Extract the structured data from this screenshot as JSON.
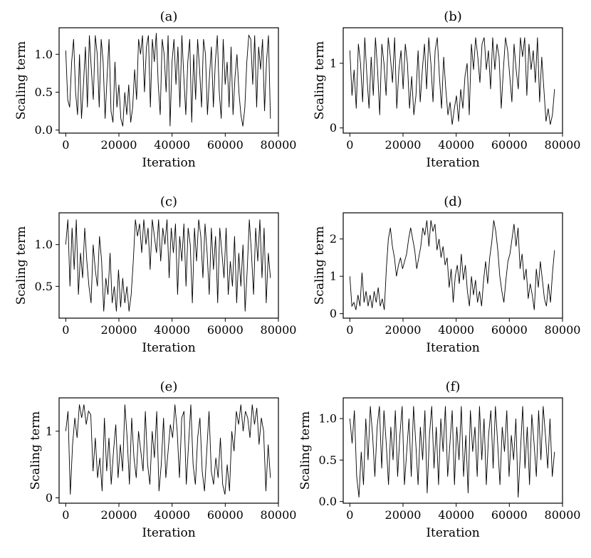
{
  "chart_data": [
    {
      "type": "line",
      "title": "(a)",
      "xlabel": "Iteration",
      "ylabel": "Scaling term",
      "xlim": [
        -2500,
        80000
      ],
      "ylim": [
        -0.04,
        1.35
      ],
      "xticks": [
        0,
        20000,
        40000,
        60000,
        80000
      ],
      "xtick_labels": [
        "0",
        "20000",
        "40000",
        "60000",
        "80000"
      ],
      "yticks": [
        0.0,
        0.5,
        1.0
      ],
      "ytick_labels": [
        "0.0",
        "0.5",
        "1.0"
      ],
      "series": [
        {
          "name": "scaling term",
          "x_start": 0,
          "x_end": 77000,
          "values": [
            1.05,
            0.4,
            0.3,
            0.9,
            1.2,
            0.5,
            0.2,
            1.0,
            0.15,
            0.6,
            1.1,
            0.3,
            1.25,
            0.8,
            0.4,
            1.25,
            1.0,
            0.3,
            1.2,
            0.9,
            0.15,
            0.7,
            1.2,
            0.25,
            0.1,
            0.9,
            0.3,
            0.6,
            0.15,
            0.05,
            0.5,
            0.2,
            0.6,
            0.1,
            0.3,
            0.8,
            0.4,
            1.2,
            1.0,
            1.25,
            0.5,
            1.1,
            1.25,
            0.3,
            1.2,
            0.9,
            1.28,
            0.6,
            0.2,
            1.2,
            1.0,
            0.5,
            1.25,
            0.05,
            0.9,
            1.2,
            0.6,
            1.1,
            0.3,
            1.25,
            0.7,
            0.2,
            0.9,
            1.2,
            0.1,
            1.0,
            0.4,
            1.2,
            0.8,
            0.3,
            1.2,
            1.0,
            0.2,
            0.7,
            1.1,
            0.3,
            0.9,
            1.25,
            0.5,
            0.15,
            1.2,
            0.6,
            0.9,
            0.3,
            1.1,
            0.2,
            0.7,
            1.0,
            0.5,
            0.2,
            0.05,
            0.3,
            0.9,
            1.25,
            1.2,
            0.6,
            1.25,
            0.3,
            1.1,
            0.8,
            1.2,
            0.25,
            0.9,
            1.25,
            0.15
          ]
        }
      ]
    },
    {
      "type": "line",
      "title": "(b)",
      "xlabel": "Iteration",
      "ylabel": "Scaling term",
      "xlim": [
        -2500,
        80000
      ],
      "ylim": [
        -0.08,
        1.55
      ],
      "xticks": [
        0,
        20000,
        40000,
        60000,
        80000
      ],
      "xtick_labels": [
        "0",
        "20000",
        "40000",
        "60000",
        "80000"
      ],
      "yticks": [
        0,
        1
      ],
      "ytick_labels": [
        "0",
        "1"
      ],
      "series": [
        {
          "name": "scaling term",
          "x_start": 0,
          "x_end": 77000,
          "values": [
            1.2,
            0.5,
            0.9,
            0.3,
            1.3,
            1.0,
            0.4,
            1.4,
            0.8,
            0.3,
            1.1,
            0.5,
            1.4,
            0.9,
            0.2,
            1.3,
            1.0,
            0.5,
            1.4,
            1.1,
            0.7,
            1.4,
            0.3,
            0.9,
            1.2,
            0.6,
            1.3,
            1.0,
            0.3,
            0.8,
            0.2,
            0.5,
            1.2,
            0.4,
            0.9,
            1.3,
            0.6,
            1.4,
            1.0,
            0.4,
            1.2,
            1.4,
            0.8,
            0.3,
            1.1,
            0.6,
            0.2,
            0.4,
            0.05,
            0.3,
            0.5,
            0.1,
            0.6,
            0.3,
            0.8,
            1.0,
            0.2,
            1.3,
            0.9,
            1.4,
            1.1,
            0.7,
            1.3,
            1.4,
            0.9,
            1.2,
            0.6,
            1.4,
            0.9,
            1.3,
            1.1,
            0.3,
            0.9,
            1.4,
            1.2,
            0.8,
            0.4,
            1.3,
            0.9,
            0.6,
            1.4,
            1.1,
            1.4,
            0.5,
            1.3,
            0.9,
            1.2,
            0.7,
            1.4,
            0.4,
            1.1,
            0.6,
            0.1,
            0.3,
            0.05,
            0.2,
            0.6
          ]
        }
      ]
    },
    {
      "type": "line",
      "title": "(c)",
      "xlabel": "Iteration",
      "ylabel": "Scaling term",
      "xlim": [
        -2500,
        80000
      ],
      "ylim": [
        0.12,
        1.38
      ],
      "xticks": [
        0,
        20000,
        40000,
        60000,
        80000
      ],
      "xtick_labels": [
        "0",
        "20000",
        "40000",
        "60000",
        "80000"
      ],
      "yticks": [
        0.5,
        1.0
      ],
      "ytick_labels": [
        "0.5",
        "1.0"
      ],
      "series": [
        {
          "name": "scaling term",
          "x_start": 0,
          "x_end": 77000,
          "values": [
            1.0,
            1.3,
            0.5,
            1.2,
            0.7,
            1.3,
            0.4,
            0.9,
            0.6,
            1.2,
            0.8,
            0.5,
            0.3,
            1.0,
            0.7,
            0.5,
            1.1,
            0.8,
            0.2,
            0.6,
            0.4,
            0.9,
            0.3,
            0.5,
            0.2,
            0.7,
            0.25,
            0.6,
            0.3,
            0.5,
            0.2,
            0.4,
            0.8,
            1.3,
            1.1,
            1.25,
            0.9,
            1.3,
            1.0,
            1.2,
            0.7,
            1.3,
            1.1,
            0.9,
            1.3,
            0.8,
            1.2,
            1.0,
            1.3,
            0.6,
            1.2,
            0.9,
            1.25,
            0.4,
            1.1,
            0.8,
            1.25,
            0.5,
            1.2,
            1.0,
            0.3,
            1.2,
            0.8,
            1.3,
            1.1,
            0.6,
            1.25,
            0.9,
            0.4,
            1.2,
            0.7,
            1.1,
            0.3,
            1.2,
            0.9,
            0.6,
            1.2,
            0.4,
            0.8,
            0.5,
            1.1,
            0.3,
            0.9,
            0.5,
            1.0,
            0.2,
            0.7,
            1.3,
            0.9,
            0.4,
            1.2,
            0.8,
            1.3,
            0.6,
            1.2,
            0.3,
            0.9,
            0.6
          ]
        }
      ]
    },
    {
      "type": "line",
      "title": "(d)",
      "xlabel": "Iteration",
      "ylabel": "Scaling term",
      "xlim": [
        -2500,
        80000
      ],
      "ylim": [
        -0.12,
        2.7
      ],
      "xticks": [
        0,
        20000,
        40000,
        60000,
        80000
      ],
      "xtick_labels": [
        "0",
        "20000",
        "40000",
        "60000",
        "80000"
      ],
      "yticks": [
        0,
        1,
        2
      ],
      "ytick_labels": [
        "0",
        "1",
        "2"
      ],
      "series": [
        {
          "name": "scaling term",
          "x_start": 0,
          "x_end": 77000,
          "values": [
            1.0,
            0.2,
            0.3,
            0.1,
            0.5,
            0.2,
            1.1,
            0.3,
            0.6,
            0.2,
            0.5,
            0.15,
            0.6,
            0.3,
            0.7,
            0.2,
            0.4,
            0.1,
            1.2,
            2.0,
            2.3,
            1.8,
            1.5,
            1.0,
            1.3,
            1.5,
            1.2,
            1.4,
            1.6,
            2.0,
            2.3,
            2.0,
            1.7,
            1.2,
            1.5,
            1.8,
            2.3,
            2.1,
            2.5,
            1.8,
            2.5,
            2.2,
            2.4,
            1.7,
            2.0,
            1.5,
            1.8,
            1.3,
            1.5,
            0.7,
            1.2,
            0.3,
            1.0,
            1.3,
            0.8,
            1.6,
            0.9,
            1.3,
            0.6,
            0.2,
            1.0,
            0.5,
            0.9,
            0.3,
            0.6,
            0.2,
            0.9,
            1.4,
            0.8,
            1.5,
            1.9,
            2.5,
            2.2,
            1.7,
            1.0,
            0.6,
            0.3,
            0.9,
            1.4,
            1.6,
            2.0,
            2.4,
            1.8,
            2.3,
            1.2,
            1.6,
            0.9,
            1.2,
            0.4,
            0.8,
            0.5,
            0.1,
            1.2,
            0.7,
            1.4,
            0.9,
            0.4,
            0.2,
            0.8,
            0.3,
            1.1,
            1.7
          ]
        }
      ]
    },
    {
      "type": "line",
      "title": "(e)",
      "xlabel": "Iteration",
      "ylabel": "Scaling term",
      "xlim": [
        -2500,
        80000
      ],
      "ylim": [
        -0.08,
        1.5
      ],
      "xticks": [
        0,
        20000,
        40000,
        60000,
        80000
      ],
      "xtick_labels": [
        "0",
        "20000",
        "40000",
        "60000",
        "80000"
      ],
      "yticks": [
        0,
        1
      ],
      "ytick_labels": [
        "0",
        "1"
      ],
      "series": [
        {
          "name": "scaling term",
          "x_start": 0,
          "x_end": 77000,
          "values": [
            1.0,
            1.3,
            0.05,
            0.8,
            1.2,
            0.9,
            1.4,
            1.2,
            1.4,
            1.1,
            1.3,
            1.25,
            0.4,
            0.9,
            0.3,
            0.6,
            0.1,
            1.2,
            0.4,
            0.9,
            0.2,
            0.7,
            1.1,
            0.3,
            0.8,
            0.4,
            1.4,
            0.9,
            0.2,
            1.2,
            0.6,
            0.3,
            1.0,
            0.7,
            0.4,
            1.3,
            0.5,
            0.2,
            1.0,
            0.6,
            1.3,
            0.1,
            0.5,
            1.2,
            0.3,
            0.7,
            1.1,
            0.9,
            1.4,
            1.0,
            0.3,
            1.2,
            1.3,
            0.2,
            0.8,
            1.4,
            0.5,
            0.2,
            0.9,
            1.2,
            0.4,
            0.1,
            0.7,
            1.3,
            0.4,
            0.2,
            0.6,
            0.3,
            0.9,
            0.2,
            0.05,
            0.5,
            0.1,
            1.0,
            0.7,
            1.3,
            1.1,
            1.4,
            1.0,
            1.3,
            1.2,
            0.9,
            1.4,
            1.1,
            1.35,
            0.8,
            1.2,
            1.0,
            0.1,
            0.8,
            0.3
          ]
        }
      ]
    },
    {
      "type": "line",
      "title": "(f)",
      "xlabel": "Iteration",
      "ylabel": "Scaling term",
      "xlim": [
        -2500,
        80000
      ],
      "ylim": [
        -0.02,
        1.25
      ],
      "xticks": [
        0,
        20000,
        40000,
        60000,
        80000
      ],
      "xtick_labels": [
        "0",
        "20000",
        "40000",
        "60000",
        "80000"
      ],
      "yticks": [
        0.0,
        0.5,
        1.0
      ],
      "ytick_labels": [
        "0.0",
        "0.5",
        "1.0"
      ],
      "series": [
        {
          "name": "scaling term",
          "x_start": 0,
          "x_end": 77000,
          "values": [
            1.0,
            0.7,
            1.1,
            0.3,
            0.05,
            0.6,
            0.2,
            1.0,
            0.5,
            1.15,
            0.8,
            0.3,
            0.9,
            1.15,
            0.4,
            1.1,
            0.7,
            0.2,
            0.9,
            0.5,
            1.1,
            0.3,
            0.8,
            1.15,
            0.2,
            0.6,
            1.0,
            0.3,
            1.15,
            0.7,
            0.2,
            0.9,
            0.5,
            1.1,
            0.1,
            0.8,
            1.15,
            0.4,
            0.9,
            0.2,
            1.0,
            0.6,
            1.15,
            0.3,
            0.7,
            1.1,
            0.2,
            0.9,
            0.5,
            1.15,
            0.3,
            0.8,
            0.1,
            1.1,
            0.6,
            0.9,
            0.3,
            1.15,
            0.5,
            1.0,
            0.2,
            0.8,
            1.1,
            0.4,
            1.15,
            0.7,
            0.2,
            0.9,
            0.6,
            1.1,
            0.3,
            0.8,
            0.5,
            1.0,
            0.05,
            0.6,
            1.15,
            0.4,
            0.9,
            0.2,
            1.05,
            0.7,
            0.3,
            1.1,
            0.5,
            1.15,
            0.8,
            0.4,
            1.0,
            0.3,
            0.6
          ]
        }
      ]
    }
  ]
}
